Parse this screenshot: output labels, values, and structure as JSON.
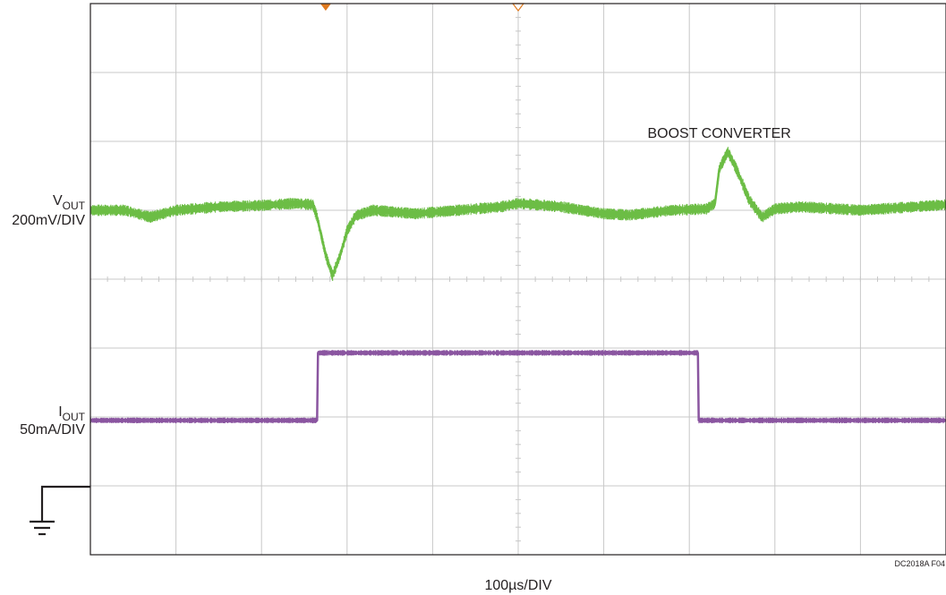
{
  "colors": {
    "vout_trace": "#6cbd45",
    "iout_trace": "#8a55a0",
    "grid": "#c8c8c8",
    "frame": "#231f20",
    "trigger_marker": "#e07a1f"
  },
  "labels": {
    "vout_name": "V",
    "vout_sub": "OUT",
    "vout_scale": "200mV/DIV",
    "iout_name": "I",
    "iout_sub": "OUT",
    "iout_scale": "50mA/DIV",
    "annotation": "BOOST CONVERTER",
    "time_scale": "100µs/DIV",
    "figure_code": "DC2018A F04"
  },
  "ground_icon": "ground-symbol-icon",
  "chart_data": {
    "type": "line",
    "x_unit": "div",
    "y_unit": "div",
    "xlim": [
      0,
      10
    ],
    "ylim": [
      0,
      8
    ],
    "x_divisions": 10,
    "y_divisions": 8,
    "grid": true,
    "xlabel": "100µs/DIV",
    "series": [
      {
        "name": "VOUT",
        "scale": "200mV/DIV",
        "noise_band": 0.12,
        "x": [
          0,
          0.4,
          0.7,
          1.0,
          1.5,
          2.0,
          2.4,
          2.6,
          2.65,
          2.75,
          2.83,
          2.92,
          3.0,
          3.1,
          3.3,
          3.8,
          4.3,
          4.8,
          5.0,
          5.5,
          6.0,
          6.3,
          6.8,
          7.2,
          7.3,
          7.35,
          7.45,
          7.55,
          7.7,
          7.85,
          8.0,
          8.3,
          9.0,
          10.0
        ],
        "y": [
          5.0,
          5.0,
          4.9,
          5.0,
          5.05,
          5.07,
          5.1,
          5.08,
          4.9,
          4.35,
          4.05,
          4.35,
          4.7,
          4.92,
          5.0,
          4.95,
          5.0,
          5.05,
          5.1,
          5.05,
          4.95,
          4.93,
          5.0,
          5.02,
          5.1,
          5.6,
          5.85,
          5.6,
          5.15,
          4.9,
          5.02,
          5.05,
          5.0,
          5.08
        ]
      },
      {
        "name": "IOUT",
        "scale": "50mA/DIV",
        "noise_band": 0.06,
        "x": [
          0,
          2.65,
          2.66,
          7.1,
          7.11,
          10.0
        ],
        "y": [
          1.95,
          1.95,
          2.93,
          2.93,
          1.95,
          1.95
        ]
      }
    ],
    "trigger_markers": [
      2.75,
      5.0
    ],
    "annotations": [
      {
        "text": "BOOST CONVERTER",
        "x": 7.35,
        "y": 6.05
      }
    ]
  }
}
